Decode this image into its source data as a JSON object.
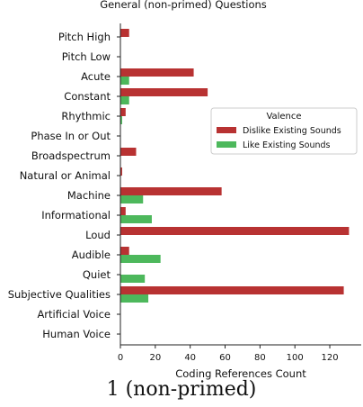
{
  "chart_data": {
    "type": "bar",
    "orientation": "horizontal",
    "title": "General (non-primed) Questions",
    "xlabel": "Coding References Count",
    "ylabel": "",
    "xlim": [
      0,
      138
    ],
    "xticks": [
      0,
      20,
      40,
      60,
      80,
      100,
      120
    ],
    "grid": false,
    "legend_position": "center-right",
    "legend_title": "Valence",
    "categories": [
      "Pitch High",
      "Pitch Low",
      "Acute",
      "Constant",
      "Rhythmic",
      "Phase In or Out",
      "Broadspectrum",
      "Natural or Animal",
      "Machine",
      "Informational",
      "Loud",
      "Audible",
      "Quiet",
      "Subjective Qualities",
      "Artificial Voice",
      "Human Voice"
    ],
    "series": [
      {
        "name": "Dislike Existing Sounds",
        "color": "#b83232",
        "values": [
          5,
          0,
          42,
          50,
          3,
          0,
          9,
          1,
          58,
          3,
          131,
          5,
          0,
          128,
          0,
          0
        ]
      },
      {
        "name": "Like Existing Sounds",
        "color": "#4db85c",
        "values": [
          0,
          0,
          5,
          5,
          1,
          0,
          0,
          0,
          13,
          18,
          0,
          23,
          14,
          16,
          0,
          0
        ]
      }
    ]
  },
  "caption": "1 (non-primed)"
}
